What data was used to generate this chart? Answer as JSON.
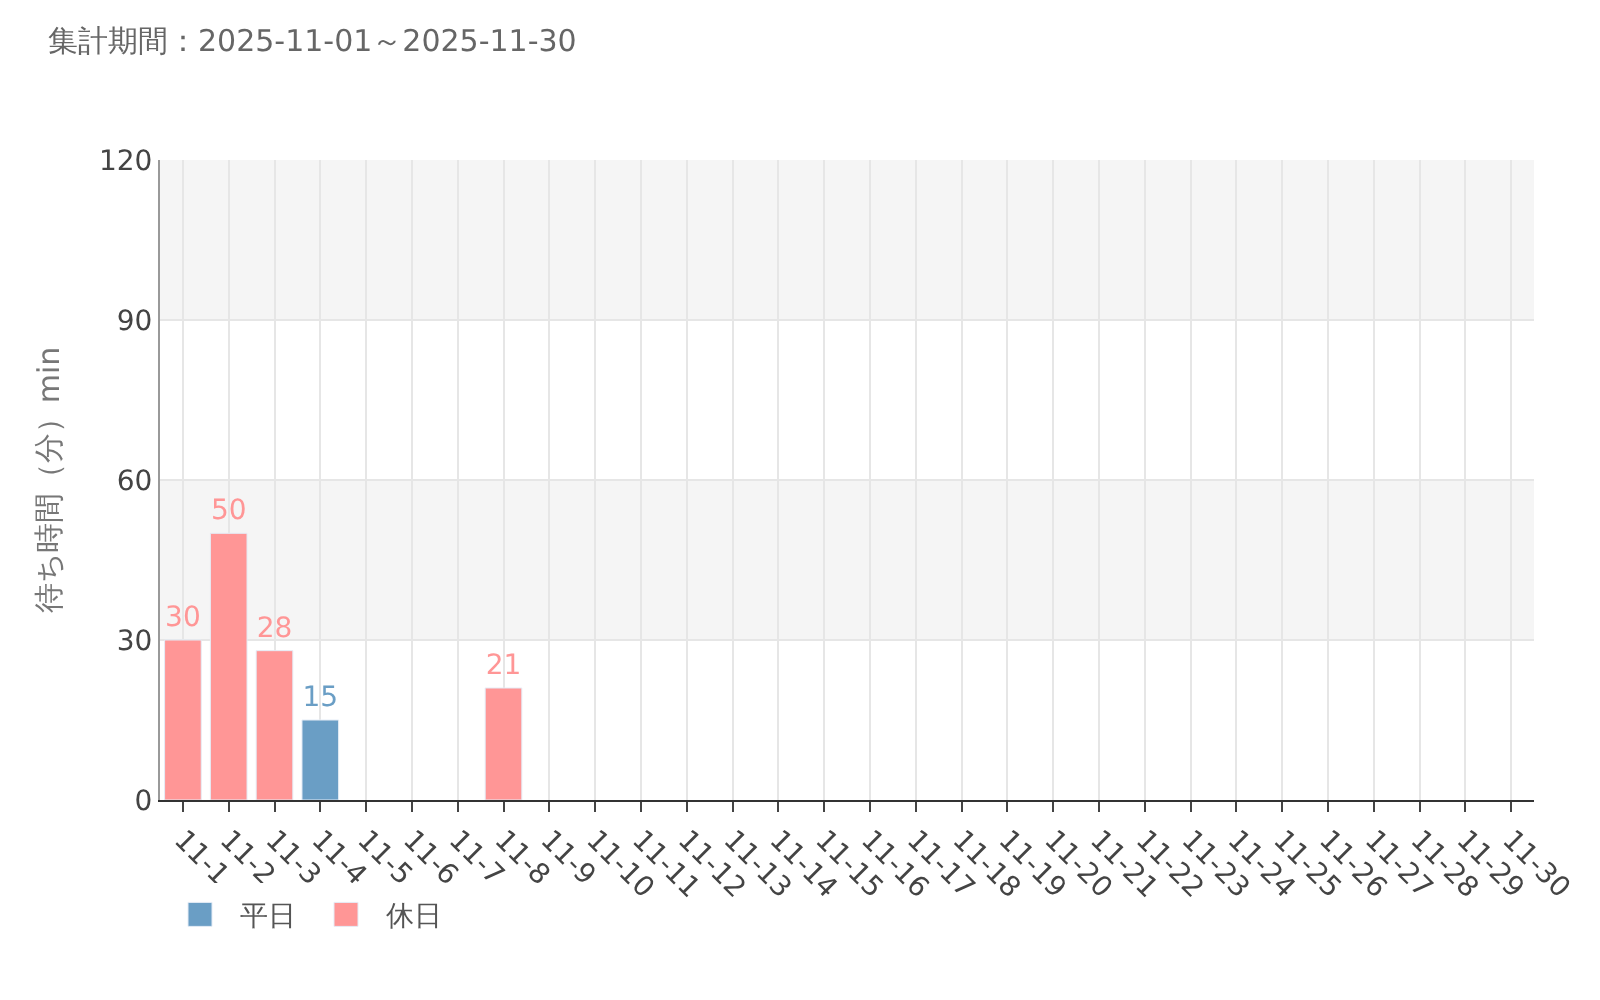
{
  "chart_data": {
    "type": "bar",
    "title": "集計期間：2025-11-01～2025-11-30",
    "ylabel": "待ち時間（分）min",
    "categories": [
      "11-1",
      "11-2",
      "11-3",
      "11-4",
      "11-5",
      "11-6",
      "11-7",
      "11-8",
      "11-9",
      "11-10",
      "11-11",
      "11-12",
      "11-13",
      "11-14",
      "11-15",
      "11-16",
      "11-17",
      "11-18",
      "11-19",
      "11-20",
      "11-21",
      "11-22",
      "11-23",
      "11-24",
      "11-25",
      "11-26",
      "11-27",
      "11-28",
      "11-29",
      "11-30"
    ],
    "series": [
      {
        "name": "平日",
        "color": "#6a9ec5",
        "values": [
          null,
          null,
          null,
          15,
          null,
          null,
          null,
          null,
          null,
          null,
          null,
          null,
          null,
          null,
          null,
          null,
          null,
          null,
          null,
          null,
          null,
          null,
          null,
          null,
          null,
          null,
          null,
          null,
          null,
          null
        ]
      },
      {
        "name": "休日",
        "color": "#ff9696",
        "values": [
          30,
          50,
          28,
          null,
          null,
          null,
          null,
          21,
          null,
          null,
          null,
          null,
          null,
          null,
          null,
          null,
          null,
          null,
          null,
          null,
          null,
          null,
          null,
          null,
          null,
          null,
          null,
          null,
          null,
          null
        ]
      }
    ],
    "ylim": [
      0,
      120
    ],
    "yticks": [
      0,
      30,
      60,
      90,
      120
    ],
    "bands": [
      {
        "axis": "y",
        "from": 30,
        "to": 60,
        "color": "#f5f5f5"
      },
      {
        "axis": "y",
        "from": 90,
        "to": 120,
        "color": "#f5f5f5"
      }
    ],
    "grid": true,
    "data_labels": true,
    "legend": "bottom left"
  }
}
